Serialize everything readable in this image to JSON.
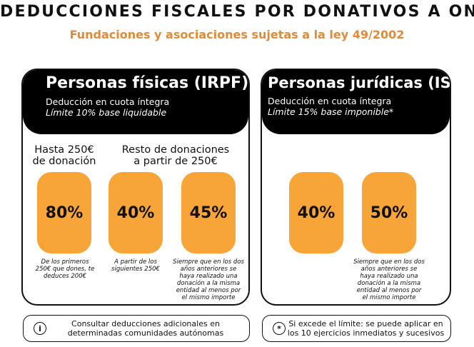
{
  "header": {
    "title": "DEDUCCIONES FISCALES POR DONATIVOS A ONG",
    "subtitle": "Fundaciones y asociaciones sujetas a la ley 49/2002"
  },
  "irpf": {
    "title": "Personas físicas (IRPF)",
    "line1": "Deducción en cuota íntegra",
    "line2": "Límite 10% base liquidable",
    "col1_head_1": "Hasta 250€",
    "col1_head_2": "de donación",
    "col2_head_1": "Resto de donaciones",
    "col2_head_2": "a partir de 250€",
    "pct1": "80%",
    "pct2": "40%",
    "pct3": "45%",
    "note1": "De los primeros 250€ que dones, te deduces 200€",
    "note2": "A partir de los siguientes 250€",
    "note3": "Siempre que en los dos años anteriores se haya realizado una donación a la misma entidad al menos por el mismo importe"
  },
  "is": {
    "title": "Personas jurídicas (IS)",
    "line1": "Deducción en cuota íntegra",
    "line2": "Límite 15% base imponible*",
    "pct1": "40%",
    "pct2": "50%",
    "note2": "Siempre que en los dos años anteriores se haya realizado una donación a la misma entidad al menos por el mismo importe"
  },
  "footer": {
    "left_icon": "info-icon",
    "left_text": "Consultar deducciones adicionales en determinadas comunidades autónomas",
    "right_icon": "asterisk-icon",
    "right_text": "Si excede el límite: se puede aplicar en los 10 ejercicios inmediatos y sucesivos"
  },
  "colors": {
    "accent_orange": "#f7a438",
    "subtitle_orange": "#e08a3c",
    "black": "#000000"
  }
}
